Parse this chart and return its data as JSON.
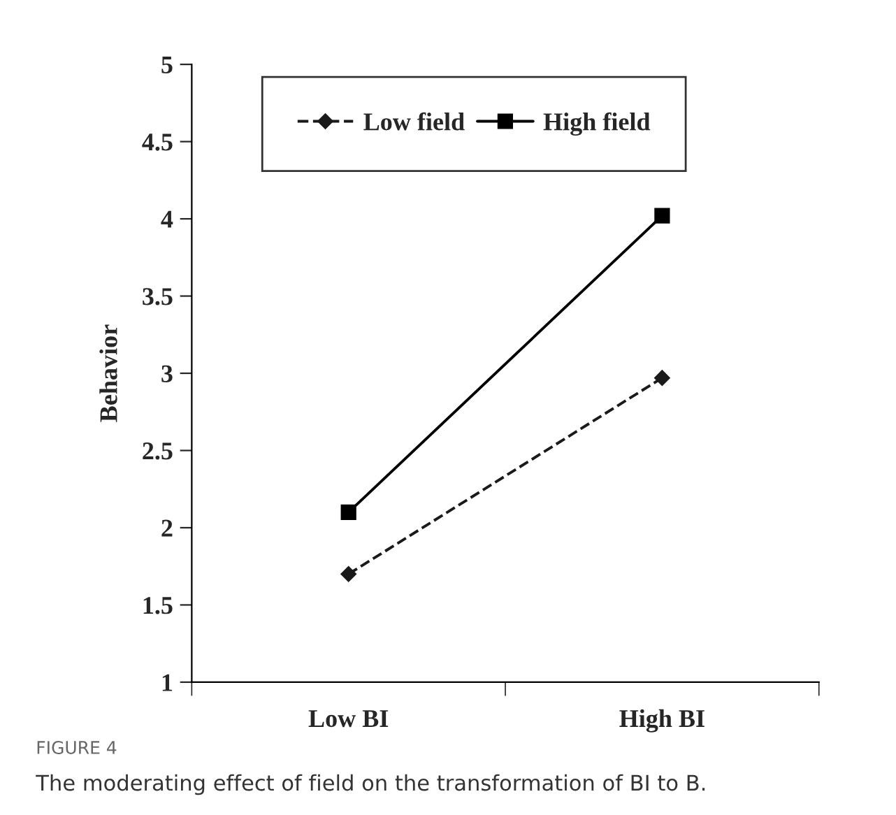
{
  "chart_data": {
    "type": "line",
    "ylabel": "Behavior",
    "categories": [
      "Low BI",
      "High BI"
    ],
    "series": [
      {
        "name": "Low field",
        "color": "#1a1a1a",
        "values": [
          1.7,
          2.97
        ],
        "marker": "diamond",
        "line_style": "dashed"
      },
      {
        "name": "High field",
        "color": "#000000",
        "values": [
          2.1,
          4.02
        ],
        "marker": "square",
        "line_style": "solid"
      }
    ],
    "ylim": [
      1,
      5
    ],
    "yticks": [
      1,
      1.5,
      2,
      2.5,
      3,
      3.5,
      4,
      4.5,
      5
    ],
    "grid": false,
    "legend": "top",
    "annotations": [
      "FIGURE 4",
      "The moderating effect of field on the transformation of BI to B."
    ]
  }
}
